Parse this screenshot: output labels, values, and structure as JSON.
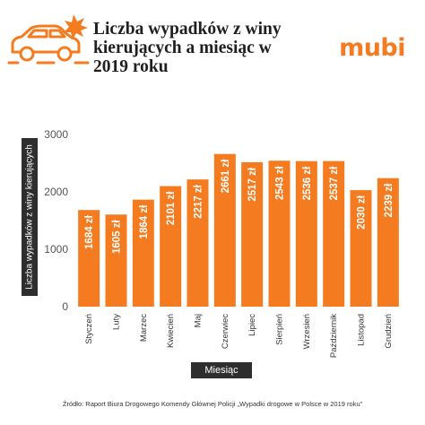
{
  "header": {
    "title": "Liczba wypadków z winy kierujących a miesiąc w 2019 roku",
    "logo": "mubi"
  },
  "source": "Źródło: Raport Biura Drogowego Komendy Głównej Policji „Wypadki drogowe w Polsce w 2019 roku”",
  "colors": {
    "bar": "#f47b20",
    "text": "#1f1f1f",
    "box": "#2e2e2e"
  },
  "icons": [
    "car-crash-icon"
  ],
  "chart_data": {
    "type": "bar",
    "title": "Liczba wypadków z winy kierujących a miesiąc w 2019 roku",
    "xlabel": "Miesiąc",
    "ylabel": "Liczba wypadków z winy kierujących",
    "ylim": [
      0,
      3000
    ],
    "yticks": [
      "0",
      "1000",
      "2000",
      "3000"
    ],
    "grid": false,
    "categories": [
      "Styczeń",
      "Luty",
      "Marzec",
      "Kwiecień",
      "Maj",
      "Czerwiec",
      "Lipiec",
      "Sierpień",
      "Wrzesień",
      "Październik",
      "Listopad",
      "Grudzień"
    ],
    "values": [
      1684,
      1605,
      1864,
      2101,
      2217,
      2661,
      2517,
      2543,
      2536,
      2537,
      2030,
      2239
    ],
    "value_labels": [
      "1684 zł",
      "1605 zł",
      "1864 zł",
      "2101 zł",
      "2217 zł",
      "2661 zł",
      "2517 zł",
      "2543 zł",
      "2536 zł",
      "2537 zł",
      "2030 zł",
      "2239 zł"
    ]
  }
}
